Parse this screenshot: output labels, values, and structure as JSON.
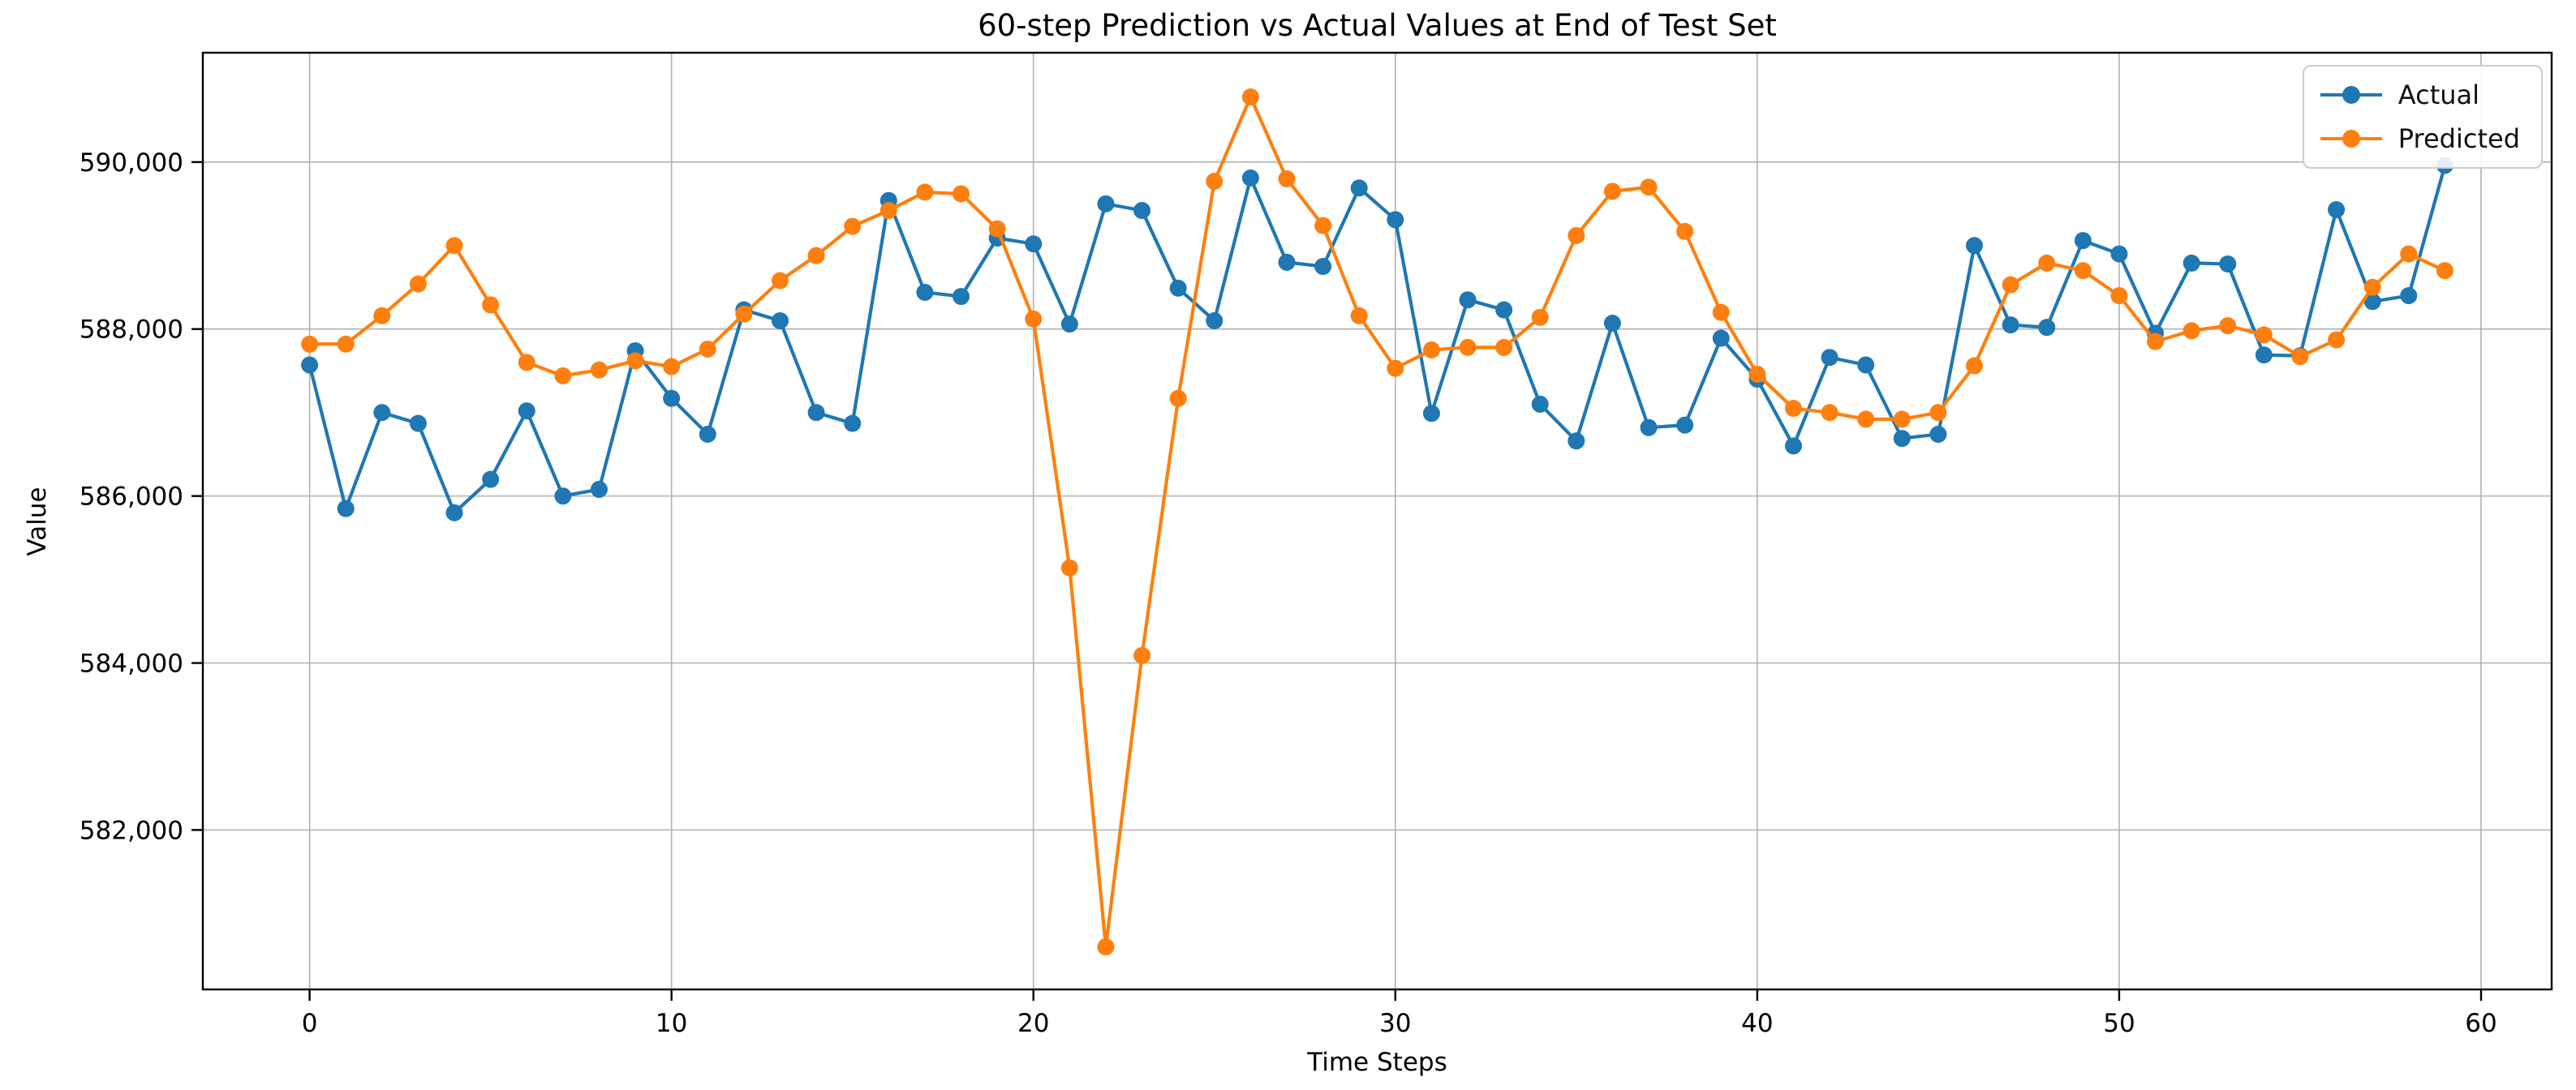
{
  "figure": {
    "background": "#ffffff"
  },
  "chart_data": {
    "type": "line",
    "title": "60-step Prediction vs Actual Values at End of Test Set",
    "xlabel": "Time Steps",
    "ylabel": "Value",
    "x": [
      0,
      1,
      2,
      3,
      4,
      5,
      6,
      7,
      8,
      9,
      10,
      11,
      12,
      13,
      14,
      15,
      16,
      17,
      18,
      19,
      20,
      21,
      22,
      23,
      24,
      25,
      26,
      27,
      28,
      29,
      30,
      31,
      32,
      33,
      34,
      35,
      36,
      37,
      38,
      39,
      40,
      41,
      42,
      43,
      44,
      45,
      46,
      47,
      48,
      49,
      50,
      51,
      52,
      53,
      54,
      55,
      56,
      57,
      58,
      59
    ],
    "series": [
      {
        "name": "Actual",
        "color": "#1f77b4",
        "values": [
          587570,
          585850,
          587000,
          586870,
          585800,
          586200,
          587020,
          586000,
          586080,
          587740,
          587170,
          586740,
          588230,
          588100,
          587000,
          586870,
          589540,
          588440,
          588390,
          589090,
          589020,
          588060,
          589500,
          589420,
          588490,
          588100,
          589810,
          588800,
          588750,
          589690,
          589310,
          586990,
          588350,
          588230,
          587100,
          586660,
          588070,
          586820,
          586850,
          587890,
          587400,
          586600,
          587660,
          587570,
          586690,
          586740,
          589000,
          588050,
          588020,
          589060,
          588900,
          587950,
          588790,
          588780,
          587690,
          587680,
          589430,
          588330,
          588400,
          589960
        ]
      },
      {
        "name": "Predicted",
        "color": "#ff7f0e",
        "values": [
          587820,
          587820,
          588160,
          588540,
          589000,
          588290,
          587600,
          587440,
          587510,
          587620,
          587550,
          587760,
          588180,
          588580,
          588880,
          589230,
          589420,
          589640,
          589620,
          589200,
          588120,
          585140,
          580600,
          584090,
          587170,
          589770,
          590780,
          589800,
          589240,
          588160,
          587530,
          587750,
          587780,
          587780,
          588140,
          589120,
          589650,
          589700,
          589170,
          588200,
          587460,
          587050,
          587000,
          586920,
          586920,
          587000,
          587560,
          588530,
          588790,
          588700,
          588400,
          587850,
          587980,
          588040,
          587930,
          587670,
          587870,
          588500,
          588900,
          588700
        ]
      }
    ],
    "xlim": [
      -2.95,
      61.95
    ],
    "ylim": [
      580090,
      591310
    ],
    "xticks": [
      0,
      10,
      20,
      30,
      40,
      50,
      60
    ],
    "xticklabels": [
      "0",
      "10",
      "20",
      "30",
      "40",
      "50",
      "60"
    ],
    "yticks": [
      582000,
      584000,
      586000,
      588000,
      590000
    ],
    "yticklabels": [
      "582,000",
      "584,000",
      "586,000",
      "588,000",
      "590,000"
    ],
    "grid": true,
    "grid_color": "#b0b0b0",
    "spine_color": "#000000",
    "tick_color": "#000000",
    "legend": {
      "position": "upper right",
      "entries": [
        "Actual",
        "Predicted"
      ]
    }
  }
}
